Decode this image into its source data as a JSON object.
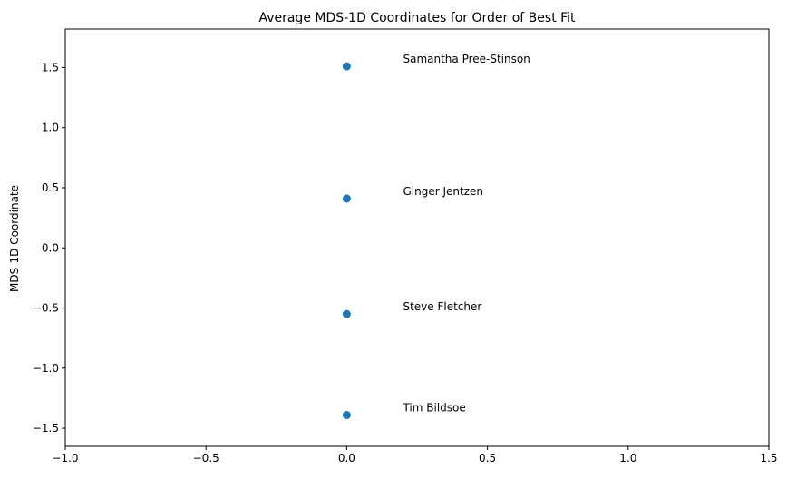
{
  "chart_data": {
    "type": "scatter",
    "title": "Average MDS-1D Coordinates for Order of Best Fit",
    "xlabel": "",
    "ylabel": "MDS-1D Coordinate",
    "xlim": [
      -1.0,
      1.5
    ],
    "ylim": [
      -1.65,
      1.82
    ],
    "xticks": [
      -1.0,
      -0.5,
      0.0,
      0.5,
      1.0,
      1.5
    ],
    "xtick_labels": [
      "−1.0",
      "−0.5",
      "0.0",
      "0.5",
      "1.0",
      "1.5"
    ],
    "yticks": [
      -1.5,
      -1.0,
      -0.5,
      0.0,
      0.5,
      1.0,
      1.5
    ],
    "ytick_labels": [
      "−1.5",
      "−1.0",
      "−0.5",
      "0.0",
      "0.5",
      "1.0",
      "1.5"
    ],
    "grid": false,
    "marker_color": "#1f77b4",
    "points": [
      {
        "label": "Samantha Pree-Stinson",
        "x": 0.0,
        "y": 1.51
      },
      {
        "label": "Ginger Jentzen",
        "x": 0.0,
        "y": 0.41
      },
      {
        "label": "Steve Fletcher",
        "x": 0.0,
        "y": -0.55
      },
      {
        "label": "Tim Bildsoe",
        "x": 0.0,
        "y": -1.39
      }
    ],
    "label_x_offset": 0.2,
    "label_y_offset": 0.03
  }
}
